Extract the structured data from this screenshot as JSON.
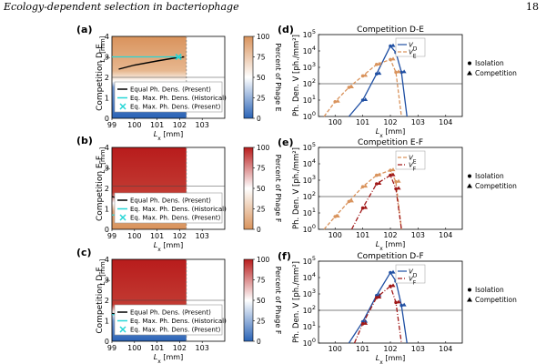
{
  "header": {
    "running_title": "Ecology-dependent selection in bacteriophage",
    "page_number": "18"
  },
  "panels_left": [
    {
      "letter": "(a)",
      "ylabel": "Competition D-E",
      "phage": "E",
      "top_color": "#d9935c",
      "low_color": "#2a63b6",
      "legend": [
        "Equal Ph. Dens. (Present)",
        "Eq. Max. Ph. Dens. (Historical)",
        "Eq. Max. Ph. Dens. (Present)"
      ]
    },
    {
      "letter": "(b)",
      "ylabel": "Competition E-F",
      "phage": "F",
      "top_color": "#b81c1c",
      "low_color": "#d9935c",
      "legend": [
        "Equal Ph. Dens. (Present)",
        "Eq. Max. Ph. Dens. (Historical)",
        "Eq. Max. Ph. Dens. (Present)"
      ]
    },
    {
      "letter": "(c)",
      "ylabel": "Competition D-F",
      "phage": "F",
      "top_color": "#b81c1c",
      "low_color": "#2a63b6",
      "legend": [
        "Equal Ph. Dens. (Present)",
        "Eq. Max. Ph. Dens. (Historical)",
        "Eq. Max. Ph. Dens. (Present)"
      ]
    }
  ],
  "heatmap_axes": {
    "xticks": [
      "99",
      "100",
      "101",
      "102",
      "103"
    ],
    "yticks": [
      "0",
      "1",
      "2",
      "3",
      "4"
    ],
    "xlabel": "Lx [mm]",
    "ylabel": "Ly [mm]",
    "cbar_ticks": [
      "100",
      "75",
      "50",
      "25",
      "0"
    ],
    "cbar_label_prefix": "Percent of Phage"
  },
  "panels_right": [
    {
      "letter": "(d)",
      "title": "Competition D-E",
      "legend": [
        "VD",
        "VE"
      ]
    },
    {
      "letter": "(e)",
      "title": "Competition E-F",
      "legend": [
        "VE",
        "VF"
      ]
    },
    {
      "letter": "(f)",
      "title": "Competition D-F",
      "legend": [
        "VD",
        "VF"
      ]
    }
  ],
  "marker_legend": [
    "Isolation",
    "Competition"
  ],
  "line_axes": {
    "xticks": [
      "100",
      "101",
      "102",
      "103",
      "104"
    ],
    "yticks": [
      "10^0",
      "10^1",
      "10^2",
      "10^3",
      "10^4",
      "10^5"
    ],
    "xlabel": "Lx [mm]",
    "ylabel": "Ph. Den. V [ph./mm²]"
  },
  "colors": {
    "D": "#1f4fa3",
    "E": "#d9935c",
    "F": "#a01818"
  },
  "chart_data": [
    {
      "type": "line",
      "title": "Competition D-E",
      "xlabel": "Lx [mm]",
      "ylabel": "Ph. Den. V [ph./mm²]",
      "xlim": [
        99.4,
        104.6
      ],
      "ylim": [
        1,
        100000
      ],
      "yscale": "log",
      "series": [
        {
          "name": "VD",
          "x": [
            100.5,
            101.0,
            101.5,
            102.0,
            102.2,
            102.4,
            102.6
          ],
          "y": [
            1,
            10,
            400,
            20000,
            8000,
            500,
            1
          ]
        },
        {
          "name": "VE",
          "x": [
            99.6,
            100.0,
            100.5,
            101.0,
            101.5,
            102.0,
            102.2,
            102.4
          ],
          "y": [
            1,
            8,
            60,
            300,
            1500,
            3000,
            500,
            1
          ]
        }
      ]
    },
    {
      "type": "line",
      "title": "Competition E-F",
      "xlabel": "Lx [mm]",
      "ylabel": "Ph. Den. V [ph./mm²]",
      "xlim": [
        99.4,
        104.6
      ],
      "ylim": [
        1,
        100000
      ],
      "yscale": "log",
      "series": [
        {
          "name": "VE",
          "x": [
            99.6,
            100.0,
            100.5,
            101.0,
            101.5,
            102.0,
            102.2,
            102.4
          ],
          "y": [
            1,
            6,
            50,
            400,
            2000,
            4000,
            800,
            1
          ]
        },
        {
          "name": "VF",
          "x": [
            100.6,
            101.0,
            101.5,
            102.0,
            102.2,
            102.4
          ],
          "y": [
            1,
            20,
            600,
            2000,
            300,
            1
          ]
        }
      ]
    },
    {
      "type": "line",
      "title": "Competition D-F",
      "xlabel": "Lx [mm]",
      "ylabel": "Ph. Den. V [ph./mm²]",
      "xlim": [
        99.4,
        104.6
      ],
      "ylim": [
        1,
        100000
      ],
      "yscale": "log",
      "series": [
        {
          "name": "VD",
          "x": [
            100.5,
            101.0,
            101.5,
            102.0,
            102.2,
            102.4,
            102.6
          ],
          "y": [
            1,
            20,
            800,
            20000,
            6000,
            200,
            1
          ]
        },
        {
          "name": "VF",
          "x": [
            100.7,
            101.0,
            101.5,
            102.0,
            102.2,
            102.4
          ],
          "y": [
            1,
            15,
            600,
            3000,
            300,
            1
          ]
        }
      ]
    }
  ]
}
